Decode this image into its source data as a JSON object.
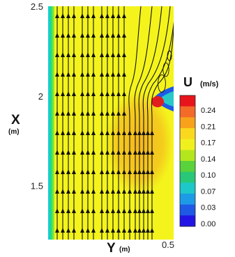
{
  "chart_data": {
    "type": "heatmap",
    "title": "",
    "xlabel": "X",
    "xlabel_unit": "(m)",
    "ylabel": "Y",
    "ylabel_unit": "(m)",
    "x_axis": {
      "range": [
        1.2,
        2.5
      ],
      "ticks": [
        "1.5",
        "2",
        "2.5"
      ]
    },
    "y_axis": {
      "range": [
        0,
        0.5
      ],
      "ticks": [
        "0.5"
      ]
    },
    "colorbar": {
      "variable": "U",
      "unit": "(m/s)",
      "levels": [
        "0.24",
        "0.21",
        "0.17",
        "0.14",
        "0.10",
        "0.07",
        "0.03",
        "0.00"
      ],
      "colors": [
        "#e8141c",
        "#f46a28",
        "#f8a21c",
        "#fad81e",
        "#f0f01e",
        "#b4e61e",
        "#5ad23c",
        "#28c878",
        "#1ec8c8",
        "#1e9be6",
        "#1e5ae6",
        "#2314e6"
      ]
    },
    "field": {
      "background_color": "#f4f41c",
      "wake_color": "#f5ad1e",
      "wall_strip_colors": [
        "#14c8ff",
        "#1edc7a",
        "#aaeb1e"
      ],
      "body_color": "#e11e1e",
      "streamline_color": "#111111"
    },
    "grid": false,
    "legend_position": "right"
  }
}
